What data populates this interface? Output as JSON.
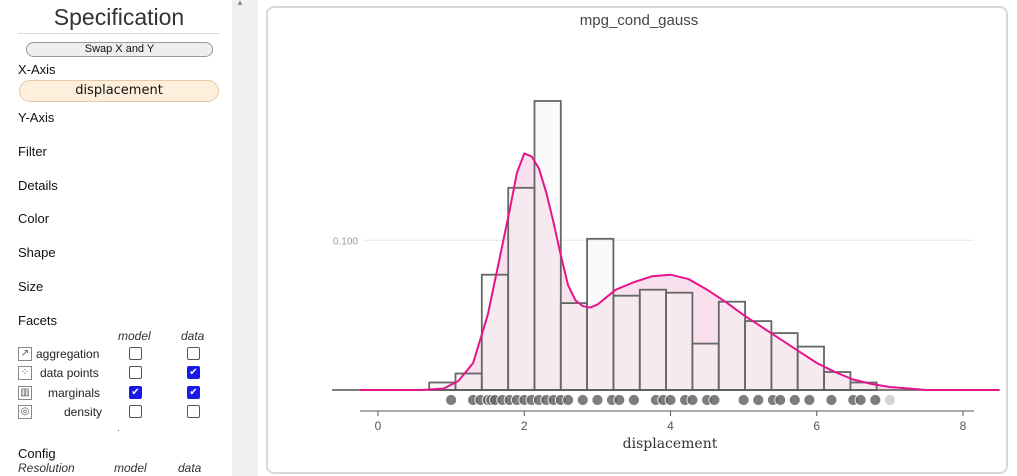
{
  "sidebar": {
    "title": "Specification",
    "swap_label": "Swap X and Y",
    "x_axis_label": "X-Axis",
    "x_axis_value": "displacement",
    "sections": [
      "Y-Axis",
      "Filter",
      "Details",
      "Color",
      "Shape",
      "Size",
      "Facets"
    ],
    "facets_columns": [
      "model",
      "data"
    ],
    "facets_rows": [
      {
        "name": "aggregation",
        "icon": "line-chart-icon",
        "model": false,
        "data": false
      },
      {
        "name": "data points",
        "icon": "scatter-icon",
        "model": false,
        "data": true
      },
      {
        "name": "marginals",
        "icon": "marginals-icon",
        "model": true,
        "data": true
      },
      {
        "name": "density",
        "icon": "density-icon",
        "model": false,
        "data": false
      }
    ],
    "dot": ".",
    "config_label": "Config",
    "config_columns": [
      "Resolution",
      "model",
      "data"
    ]
  },
  "chart_data": {
    "type": "histogram",
    "title": "mpg_cond_gauss",
    "xlabel": "displacement",
    "ylabel": "",
    "x_ticks": [
      0,
      2,
      4,
      6,
      8
    ],
    "y_ticks": [
      0.1
    ],
    "y_tick_labels": [
      "0.100"
    ],
    "xlim": [
      -0.25,
      8.6
    ],
    "ylim": [
      0,
      0.195
    ],
    "histogram": {
      "bin_edges": [
        0.7,
        1.06,
        1.42,
        1.78,
        2.14,
        2.5,
        2.86,
        3.22,
        3.58,
        3.94,
        4.3,
        4.66,
        5.02,
        5.38,
        5.74,
        6.1,
        6.46,
        6.82,
        7.18
      ],
      "values": [
        0.005,
        0.011,
        0.077,
        0.135,
        0.193,
        0.058,
        0.101,
        0.063,
        0.067,
        0.065,
        0.031,
        0.059,
        0.046,
        0.038,
        0.029,
        0.012,
        0.005,
        0.0
      ]
    },
    "density_curve": {
      "x": [
        -0.25,
        0.6,
        0.9,
        1.1,
        1.3,
        1.5,
        1.65,
        1.8,
        1.9,
        2.0,
        2.1,
        2.2,
        2.3,
        2.4,
        2.5,
        2.6,
        2.7,
        2.8,
        2.9,
        3.0,
        3.1,
        3.25,
        3.5,
        3.75,
        4.0,
        4.25,
        4.5,
        4.75,
        5.0,
        5.25,
        5.5,
        5.75,
        6.0,
        6.25,
        6.5,
        6.75,
        7.0,
        7.25,
        7.5,
        8.0,
        8.5
      ],
      "y": [
        0.0,
        0.0,
        0.001,
        0.006,
        0.018,
        0.05,
        0.085,
        0.12,
        0.145,
        0.158,
        0.156,
        0.148,
        0.132,
        0.112,
        0.09,
        0.07,
        0.06,
        0.056,
        0.055,
        0.057,
        0.061,
        0.067,
        0.072,
        0.076,
        0.077,
        0.074,
        0.067,
        0.059,
        0.05,
        0.042,
        0.034,
        0.026,
        0.018,
        0.012,
        0.007,
        0.004,
        0.002,
        0.001,
        0.0,
        0.0,
        0.0
      ]
    },
    "data_points_x": [
      1.0,
      1.3,
      1.4,
      1.5,
      1.55,
      1.6,
      1.7,
      1.8,
      1.9,
      2.0,
      2.1,
      2.2,
      2.3,
      2.4,
      2.5,
      2.6,
      2.8,
      3.0,
      3.2,
      3.3,
      3.5,
      3.8,
      3.9,
      4.0,
      4.2,
      4.3,
      4.5,
      4.6,
      5.0,
      5.2,
      5.4,
      5.5,
      5.7,
      5.9,
      6.2,
      6.5,
      6.6,
      6.8,
      7.0
    ],
    "colors": {
      "density": "#e6148c",
      "density_fill": "#f8e1ec",
      "histogram_stroke": "#666666",
      "histogram_fill": "#f4f4f4",
      "points": "#666666"
    }
  }
}
